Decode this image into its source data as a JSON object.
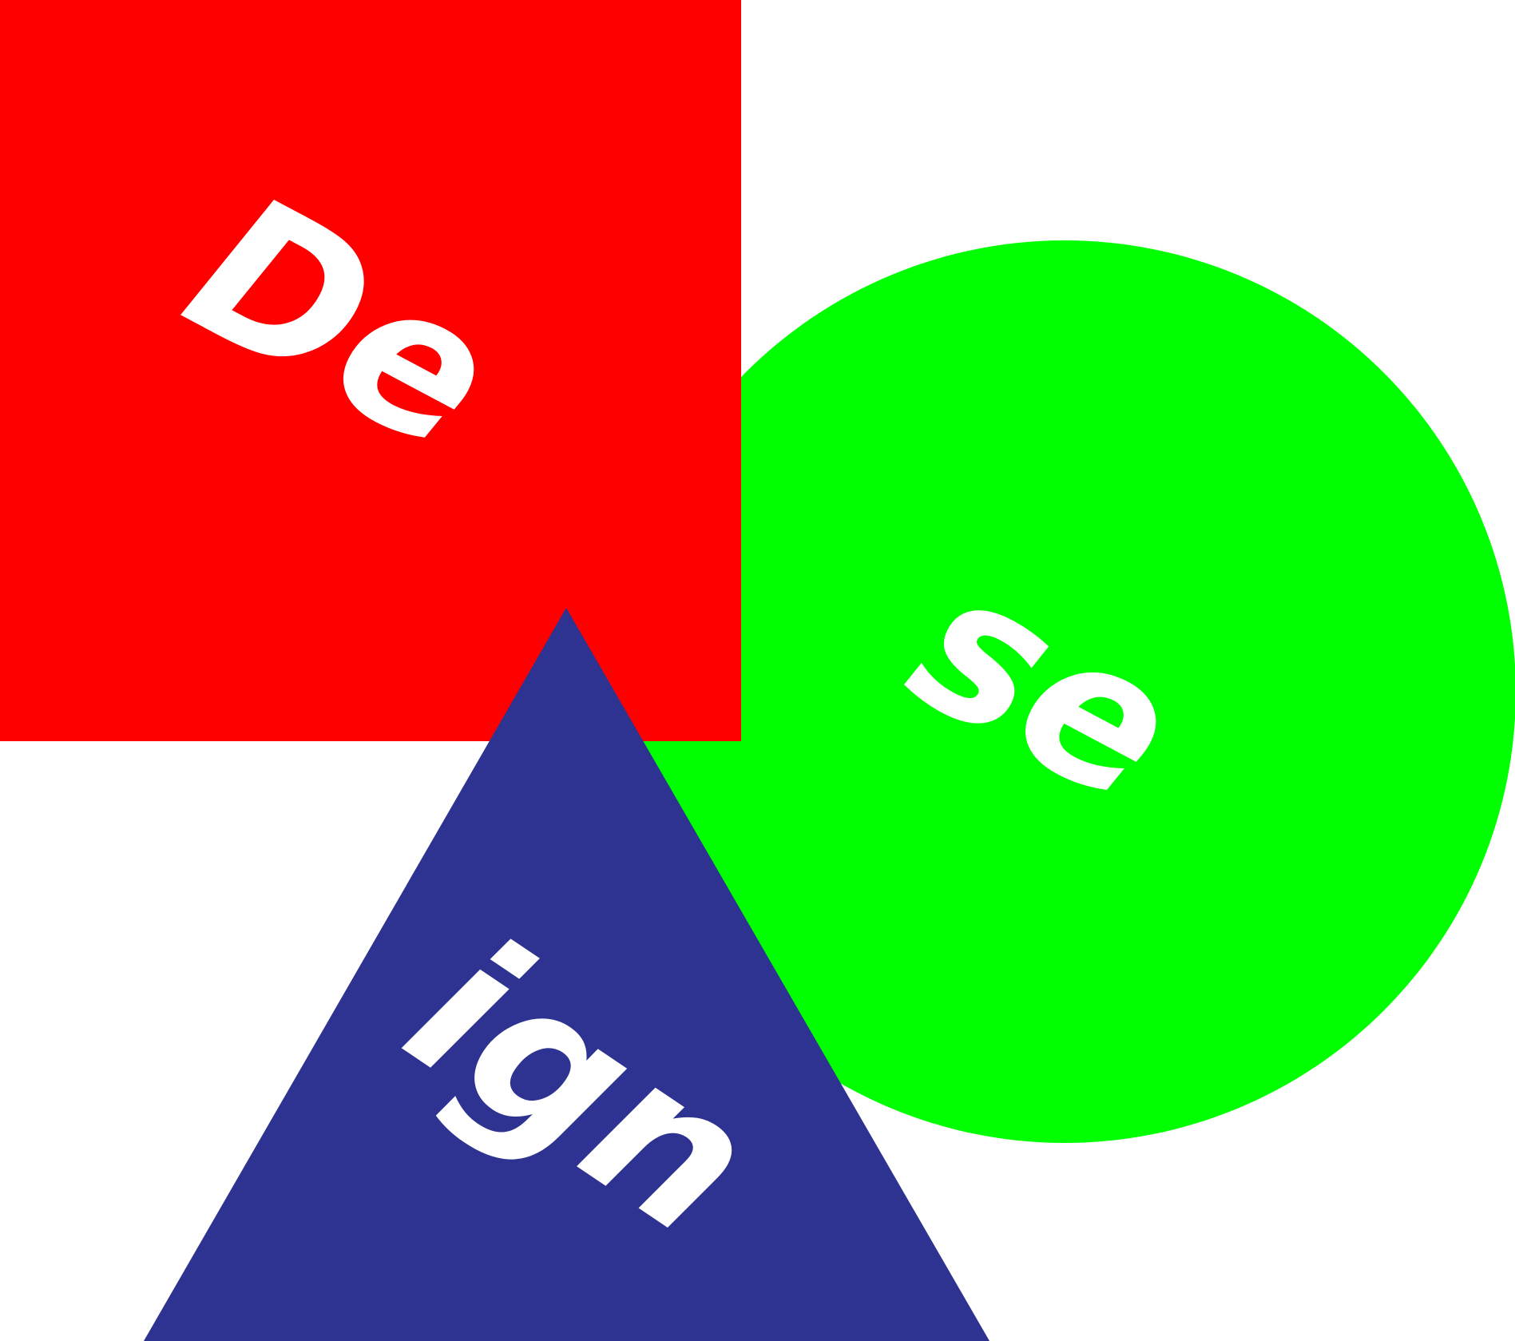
{
  "shapes": {
    "square": {
      "color": "#ff0000",
      "text": "De"
    },
    "circle": {
      "color": "#00ff00",
      "text": "se"
    },
    "triangle": {
      "color": "#2e3391",
      "text": "ign"
    }
  },
  "text_color": "#ffffff",
  "background": "#ffffff"
}
